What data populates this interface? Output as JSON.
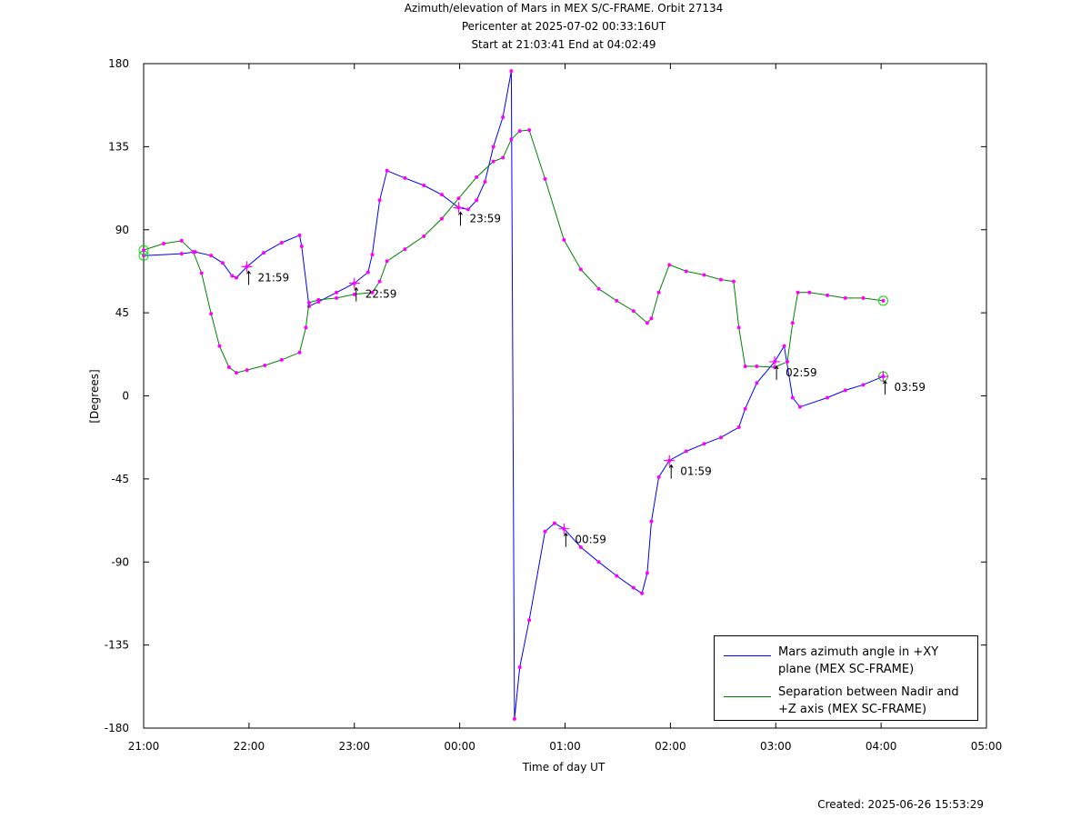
{
  "chart_data": {
    "type": "line",
    "title": "Azimuth/elevation of Mars in MEX S/C-FRAME.  Orbit 27134",
    "subtitle": [
      "Pericenter at 2025-07-02 00:33:16UT",
      "Start at 21:03:41 End at 04:02:49"
    ],
    "x_label": "Time of day UT",
    "y_label": "[Degrees]",
    "footer": "Created: 2025-06-26 15:53:29",
    "xlim": [
      21,
      29
    ],
    "xticks": [
      {
        "value": 21,
        "label": "21:00"
      },
      {
        "value": 22,
        "label": "22:00"
      },
      {
        "value": 23,
        "label": "23:00"
      },
      {
        "value": 24,
        "label": "00:00"
      },
      {
        "value": 25,
        "label": "01:00"
      },
      {
        "value": 26,
        "label": "02:00"
      },
      {
        "value": 27,
        "label": "03:00"
      },
      {
        "value": 28,
        "label": "04:00"
      },
      {
        "value": 29,
        "label": "05:00"
      }
    ],
    "ylim": [
      -180,
      180
    ],
    "yticks": [
      -180,
      -135,
      -90,
      -45,
      0,
      45,
      90,
      135,
      180
    ],
    "grid": false,
    "marker_color": "#ff00ff",
    "series": [
      {
        "name": "Mars azimuth angle in +XY plane (MEX SC-FRAME)",
        "color": "#0000ff",
        "x": [
          21.0,
          21.36,
          21.49,
          21.64,
          21.75,
          21.84,
          21.88,
          21.98,
          22.14,
          22.31,
          22.48,
          22.5,
          22.57,
          22.66,
          22.83,
          23.0,
          23.13,
          23.17,
          23.24,
          23.31,
          23.48,
          23.66,
          23.83,
          23.99,
          24.08,
          24.16,
          24.24,
          24.32,
          24.41,
          24.49,
          24.52,
          24.57,
          24.66,
          24.81,
          24.9,
          24.99,
          25.15,
          25.32,
          25.49,
          25.65,
          25.73,
          25.78,
          25.82,
          25.89,
          25.99,
          26.15,
          26.32,
          26.48,
          26.65,
          26.71,
          26.82,
          26.99,
          27.08,
          27.16,
          27.23,
          27.49,
          27.66,
          27.83,
          28.02
        ],
        "values": [
          76,
          77,
          78,
          76,
          72,
          65,
          64,
          70,
          77.5,
          83,
          87,
          81,
          48.5,
          51,
          56,
          61,
          67,
          76.5,
          106,
          122,
          118,
          114,
          109,
          102,
          101,
          106,
          116,
          135,
          151,
          176,
          -175,
          -147,
          -121.5,
          -73.5,
          -69,
          -72,
          -82,
          -90,
          -97.5,
          -104,
          -107,
          -96,
          -68,
          -44,
          -35,
          -30,
          -26,
          -22.5,
          -17,
          -7,
          7,
          18.5,
          27,
          -1,
          -6,
          -1,
          3,
          6,
          10.5
        ]
      },
      {
        "name": "Separation between Nadir and +Z axis (MEX SC-FRAME)",
        "color": "#008000",
        "x": [
          21.0,
          21.19,
          21.36,
          21.47,
          21.55,
          21.64,
          21.72,
          21.81,
          21.88,
          21.98,
          22.15,
          22.31,
          22.48,
          22.54,
          22.57,
          22.66,
          22.83,
          23.0,
          23.17,
          23.24,
          23.31,
          23.48,
          23.66,
          23.83,
          23.99,
          24.16,
          24.32,
          24.41,
          24.49,
          24.57,
          24.66,
          24.81,
          24.99,
          25.15,
          25.32,
          25.49,
          25.65,
          25.78,
          25.82,
          25.89,
          25.99,
          26.15,
          26.32,
          26.48,
          26.6,
          26.65,
          26.71,
          26.82,
          26.99,
          27.11,
          27.16,
          27.21,
          27.32,
          27.49,
          27.66,
          27.83,
          28.02
        ],
        "values": [
          79,
          82.5,
          84,
          78,
          66.5,
          44.5,
          27,
          15.5,
          12.5,
          14,
          16.5,
          19.5,
          23.5,
          37,
          50.5,
          52,
          53,
          55,
          56,
          62,
          73,
          79.5,
          86.5,
          96,
          107,
          118.5,
          127,
          129,
          139,
          143.5,
          144,
          117.5,
          84.5,
          68.5,
          58,
          51.5,
          46,
          39.5,
          42,
          56,
          71,
          67.5,
          65.5,
          63,
          62,
          37,
          16,
          16,
          15.5,
          18.5,
          39.5,
          56,
          56,
          54.5,
          53,
          53,
          51.5
        ]
      }
    ],
    "annotations": [
      {
        "text": "21:59",
        "x": 21.98,
        "y": 70
      },
      {
        "text": "22:59",
        "x": 23.0,
        "y": 61
      },
      {
        "text": "23:59",
        "x": 23.99,
        "y": 102
      },
      {
        "text": "00:59",
        "x": 24.99,
        "y": -72
      },
      {
        "text": "01:59",
        "x": 25.99,
        "y": -35
      },
      {
        "text": "02:59",
        "x": 26.99,
        "y": 18.5
      },
      {
        "text": "03:59",
        "x": 28.02,
        "y": 10.5
      }
    ]
  }
}
